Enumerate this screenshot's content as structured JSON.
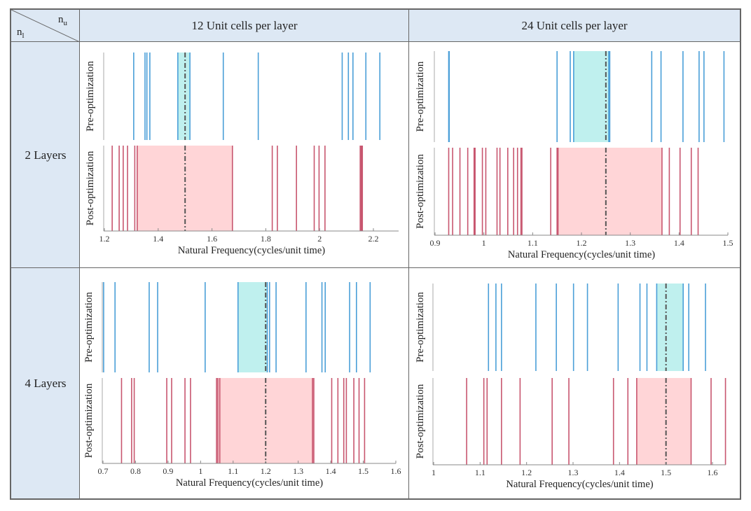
{
  "table": {
    "corner": {
      "top_label": "n",
      "top_sub": "u",
      "bottom_label": "n",
      "bottom_sub": "l"
    },
    "column_headers": [
      "12 Unit cells per layer",
      "24 Unit cells per layer"
    ],
    "row_headers": [
      "2 Layers",
      "4 Layers"
    ]
  },
  "colors": {
    "pre_line": "#4a9fd8",
    "post_line": "#c8566f",
    "pre_band": "#bff0ee",
    "post_band": "#ffd5d7",
    "target_line": "#555555",
    "header_bg": "#dde8f4"
  },
  "chart_data": [
    {
      "type": "event-plot",
      "row": "2 Layers",
      "column": "12 Unit cells per layer",
      "xlabel": "Natural Frequency(cycles/unit time)",
      "ylabel_pre": "Pre-optimization",
      "ylabel_post": "Post-optimization",
      "xlim": [
        1.2,
        2.3
      ],
      "ticks": [
        1.2,
        1.4,
        1.6,
        1.8,
        2.0,
        2.2
      ],
      "tick_labels": [
        "1.2",
        "1.4",
        "1.6",
        "1.8",
        "2",
        "2.2"
      ],
      "target": 1.5,
      "pre": {
        "values": [
          1.309,
          1.351,
          1.358,
          1.369,
          1.473,
          1.518,
          1.642,
          1.772,
          2.084,
          2.107,
          2.124,
          2.172,
          2.224
        ],
        "band": [
          1.473,
          1.518
        ]
      },
      "post": {
        "values": [
          1.229,
          1.255,
          1.27,
          1.286,
          1.313,
          1.322,
          1.676,
          1.824,
          1.843,
          1.914,
          1.98,
          1.998,
          2.02,
          2.151,
          2.155,
          2.159
        ],
        "band": [
          1.322,
          1.676
        ]
      }
    },
    {
      "type": "event-plot",
      "row": "2 Layers",
      "column": "24 Unit cells per layer",
      "xlabel": "Natural Frequency(cycles/unit time)",
      "ylabel_pre": "Pre-optimization",
      "ylabel_post": "Post-optimization",
      "xlim": [
        0.9,
        1.5
      ],
      "ticks": [
        0.9,
        1.0,
        1.1,
        1.2,
        1.3,
        1.4,
        1.5
      ],
      "tick_labels": [
        "0.9",
        "1",
        "1.1",
        "1.2",
        "1.3",
        "1.4",
        "1.5"
      ],
      "target": 1.25,
      "pre": {
        "values": [
          0.928,
          0.929,
          1.15,
          1.177,
          1.184,
          1.256,
          1.258,
          1.344,
          1.363,
          1.408,
          1.441,
          1.451,
          1.492
        ],
        "band": [
          1.184,
          1.257
        ]
      },
      "post": {
        "values": [
          0.928,
          0.936,
          0.951,
          0.967,
          0.98,
          0.982,
          0.997,
          1.004,
          1.027,
          1.033,
          1.049,
          1.061,
          1.069,
          1.076,
          1.078,
          1.137,
          1.15,
          1.152,
          1.365,
          1.38,
          1.402,
          1.425,
          1.439
        ],
        "band": [
          1.152,
          1.365
        ]
      }
    },
    {
      "type": "event-plot",
      "row": "4 Layers",
      "column": "12 Unit cells per layer",
      "xlabel": "Natural Frequency(cycles/unit time)",
      "ylabel_pre": "Pre-optimization",
      "ylabel_post": "Post-optimization",
      "xlim": [
        0.7,
        1.6
      ],
      "ticks": [
        0.7,
        0.8,
        0.9,
        1.0,
        1.1,
        1.2,
        1.3,
        1.4,
        1.5,
        1.6
      ],
      "tick_labels": [
        "0.7",
        "0.8",
        "0.9",
        "1",
        "1.1",
        "1.2",
        "1.3",
        "1.4",
        "1.5",
        "1.6"
      ],
      "target": 1.2,
      "pre": {
        "values": [
          0.702,
          0.737,
          0.842,
          0.868,
          1.014,
          1.115,
          1.205,
          1.212,
          1.232,
          1.324,
          1.373,
          1.383,
          1.458,
          1.479,
          1.521
        ],
        "band": [
          1.115,
          1.206
        ]
      },
      "post": {
        "values": [
          0.757,
          0.788,
          0.796,
          0.896,
          0.911,
          0.952,
          0.969,
          1.049,
          1.053,
          1.059,
          1.344,
          1.348,
          1.403,
          1.422,
          1.44,
          1.448,
          1.471,
          1.487,
          1.504
        ],
        "band": [
          1.052,
          1.347
        ]
      }
    },
    {
      "type": "event-plot",
      "row": "4 Layers",
      "column": "24 Unit cells per layer",
      "xlabel": "Natural Frequency(cycles/unit time)",
      "ylabel_pre": "Pre-optimization",
      "ylabel_post": "Post-optimization",
      "xlim": [
        1.0,
        1.635
      ],
      "ticks": [
        1.0,
        1.1,
        1.2,
        1.3,
        1.4,
        1.5,
        1.6
      ],
      "tick_labels": [
        "1",
        "1.1",
        "1.2",
        "1.3",
        "1.4",
        "1.5",
        "1.6"
      ],
      "target": 1.5,
      "pre": {
        "values": [
          1.118,
          1.134,
          1.146,
          1.22,
          1.264,
          1.301,
          1.331,
          1.397,
          1.444,
          1.459,
          1.48,
          1.537,
          1.549,
          1.585
        ],
        "band": [
          1.48,
          1.537
        ]
      },
      "post": {
        "values": [
          1.071,
          1.108,
          1.115,
          1.146,
          1.186,
          1.255,
          1.291,
          1.387,
          1.418,
          1.437,
          1.554,
          1.597,
          1.628
        ],
        "band": [
          1.437,
          1.554
        ]
      }
    }
  ]
}
